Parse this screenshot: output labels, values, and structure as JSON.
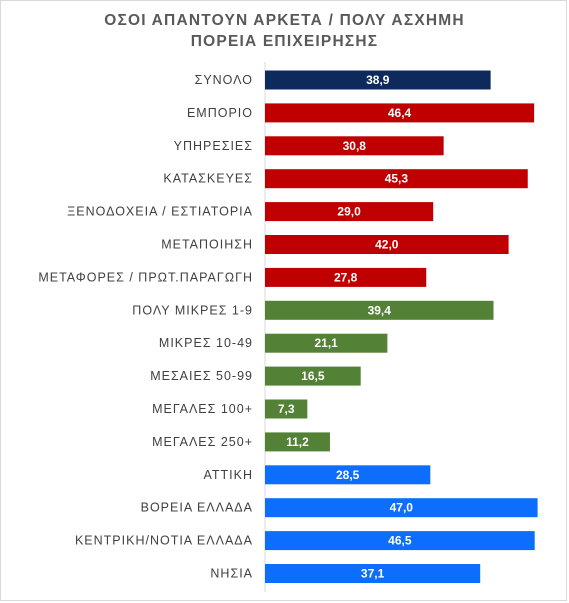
{
  "chart_data": {
    "type": "bar",
    "orientation": "horizontal",
    "title_lines": [
      "ΟΣΟΙ ΑΠΑΝΤΟΥΝ ΑΡΚΕΤΑ / ΠΟΛΥ ΑΣΧΗΜΗ",
      "ΠΟΡΕΙΑ ΕΠΙΧΕΙΡΗΣΗΣ"
    ],
    "xlim": [
      0,
      50
    ],
    "grid": false,
    "legend": "none",
    "categories": [
      "ΣΥΝΟΛΟ",
      "ΕΜΠΟΡΙΟ",
      "ΥΠΗΡΕΣΙΕΣ",
      "ΚΑΤΑΣΚΕΥΕΣ",
      "ΞΕΝΟΔΟΧΕΙΑ / ΕΣΤΙΑΤΟΡΙΑ",
      "ΜΕΤΑΠΟΙΗΣΗ",
      "ΜΕΤΑΦΟΡΕΣ / ΠΡΩΤ.ΠΑΡΑΓΩΓΗ",
      "ΠΟΛΥ ΜΙΚΡΕΣ 1-9",
      "ΜΙΚΡΕΣ 10-49",
      "ΜΕΣΑΙΕΣ 50-99",
      "ΜΕΓΑΛΕΣ 100+",
      "ΜΕΓΑΛΕΣ 250+",
      "ΑΤΤΙΚΗ",
      "ΒΟΡΕΙΑ ΕΛΛΑΔΑ",
      "ΚΕΝΤΡΙΚΗ/ΝΟΤΙΑ ΕΛΛΑΔΑ",
      "ΝΗΣΙΑ"
    ],
    "values": [
      38.9,
      46.4,
      30.8,
      45.3,
      29.0,
      42.0,
      27.8,
      39.4,
      21.1,
      16.5,
      7.3,
      11.2,
      28.5,
      47.0,
      46.5,
      37.1
    ],
    "value_labels": [
      "38,9",
      "46,4",
      "30,8",
      "45,3",
      "29,0",
      "42,0",
      "27,8",
      "39,4",
      "21,1",
      "16,5",
      "7,3",
      "11,2",
      "28,5",
      "47,0",
      "46,5",
      "37,1"
    ],
    "colors": [
      "#0e2a5c",
      "#c00000",
      "#c00000",
      "#c00000",
      "#c00000",
      "#c00000",
      "#c00000",
      "#538135",
      "#538135",
      "#538135",
      "#538135",
      "#538135",
      "#0d6efd",
      "#0d6efd",
      "#0d6efd",
      "#0d6efd"
    ]
  }
}
